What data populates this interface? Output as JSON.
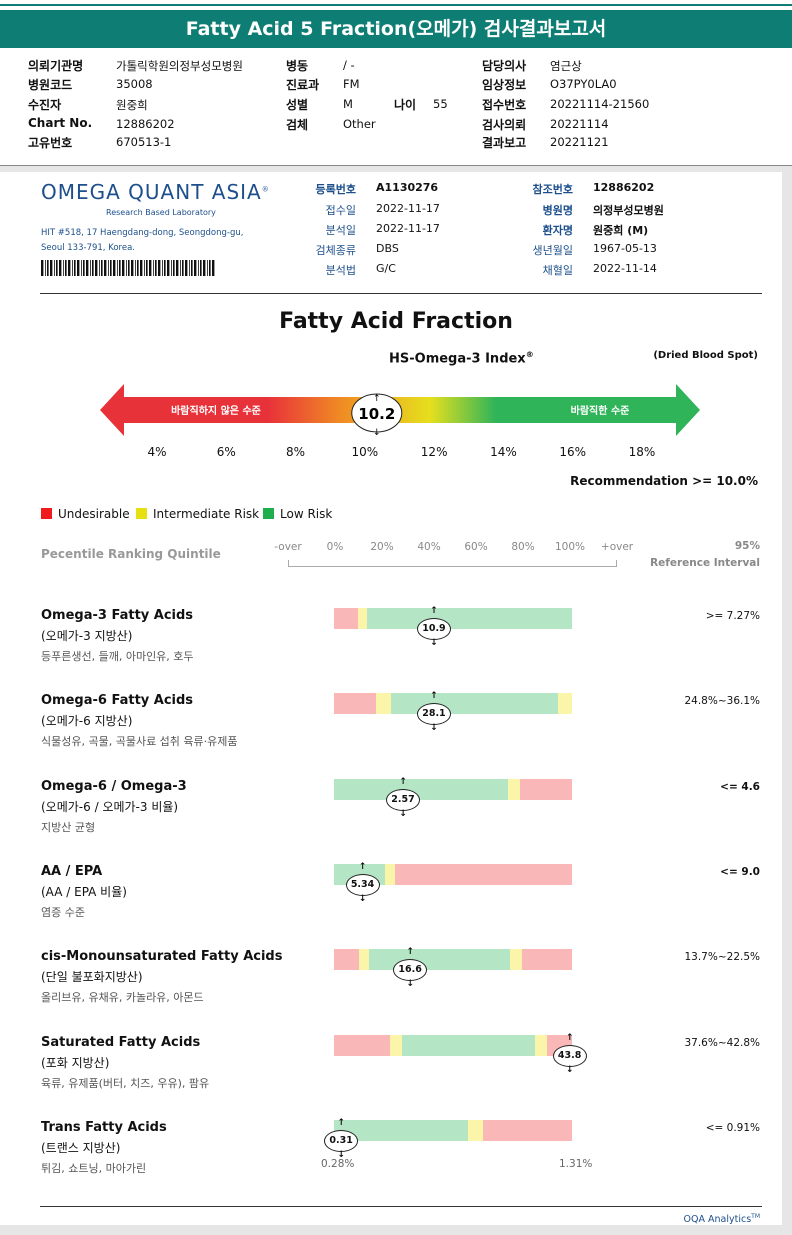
{
  "header": {
    "title": "Fatty Acid 5 Fraction(오메가) 검사결과보고서"
  },
  "info": {
    "col1": [
      {
        "label": "의뢰기관명",
        "value": "가톨릭학원의정부성모병원"
      },
      {
        "label": "병원코드",
        "value": "35008"
      },
      {
        "label": "수진자",
        "value": "원중희"
      },
      {
        "label": "Chart No.",
        "value": "12886202"
      },
      {
        "label": "고유번호",
        "value": "670513-1"
      }
    ],
    "col2": [
      {
        "label": "병동",
        "value": "/ -"
      },
      {
        "label": "진료과",
        "value": "FM"
      },
      {
        "label": "성별",
        "value": "M"
      },
      {
        "label": "검체",
        "value": "Other"
      }
    ],
    "age": {
      "label": "나이",
      "value": "55"
    },
    "col3": [
      {
        "label": "담당의사",
        "value": "염근상"
      },
      {
        "label": "임상정보",
        "value": "O37PY0LA0"
      },
      {
        "label": "접수번호",
        "value": "20221114-21560"
      },
      {
        "label": "검사의뢰",
        "value": "20221114"
      },
      {
        "label": "결과보고",
        "value": "20221121"
      }
    ]
  },
  "lab": {
    "name": "OMEGA QUANT ASIA",
    "trademark": "®",
    "sub": "Research Based Laboratory",
    "address_line1": "HIT #518, 17 Haengdang-dong, Seongdong-gu,",
    "address_line2": "Seoul 133-791, Korea."
  },
  "report_meta": {
    "left": [
      {
        "label": "등록번호",
        "value": "A1130276",
        "bold": true
      },
      {
        "label": "접수일",
        "value": "2022-11-17"
      },
      {
        "label": "분석일",
        "value": "2022-11-17"
      },
      {
        "label": "검체종류",
        "value": "DBS"
      },
      {
        "label": "분석법",
        "value": "G/C"
      }
    ],
    "right": [
      {
        "label": "참조번호",
        "value": "12886202",
        "bold": true
      },
      {
        "label": "병원명",
        "value": "의정부성모병원",
        "bold": true
      },
      {
        "label": "환자명",
        "value": "원중희 (M)",
        "bold": true
      },
      {
        "label": "생년월일",
        "value": "1967-05-13"
      },
      {
        "label": "채혈일",
        "value": "2022-11-14"
      }
    ]
  },
  "index_section": {
    "title": "Fatty Acid Fraction",
    "subtitle": "HS-Omega-3 Index",
    "subtitle_sup": "®",
    "sample_type": "(Dried Blood Spot)",
    "left_label": "바람직하지 않은 수준",
    "right_label": "바람직한 수준",
    "value": "10.2",
    "value_num": 10.2,
    "scale": [
      "4%",
      "6%",
      "8%",
      "10%",
      "12%",
      "14%",
      "16%",
      "18%"
    ],
    "scale_min": 4,
    "scale_max": 18,
    "recommendation": "Recommendation   >= 10.0%",
    "colors": {
      "red": "#e8323a",
      "orange": "#f08a24",
      "yellow": "#e6df1e",
      "green": "#2fb45a"
    }
  },
  "legend": [
    {
      "label": "Undesirable",
      "color": "#ee1c1c"
    },
    {
      "label": "Intermediate Risk",
      "color": "#e6e010"
    },
    {
      "label": "Low Risk",
      "color": "#1fae4c"
    }
  ],
  "percentile": {
    "title": "Pecentile Ranking Quintile",
    "ticks": [
      "-over",
      "0%",
      "20%",
      "40%",
      "60%",
      "80%",
      "100%",
      "+over"
    ],
    "ref_title_line1": "95%",
    "ref_title_line2": "Reference Interval"
  },
  "zone_colors": {
    "red": "#f9b7b7",
    "yellow": "#fbf5aa",
    "green": "#b4e6c6"
  },
  "rows": [
    {
      "title": "Omega-3 Fatty Acids",
      "sub": "(오메가-3 지방산)",
      "desc": "등푸른생선, 들깨, 아마인유, 호두",
      "ref": ">= 7.27%",
      "ref_bold": false,
      "value": "10.9",
      "marker_frac": 0.42,
      "zones": [
        [
          "red",
          0,
          0.1
        ],
        [
          "yellow",
          0.1,
          0.14
        ],
        [
          "green",
          0.14,
          1.0
        ]
      ]
    },
    {
      "title": "Omega-6 Fatty Acids",
      "sub": "(오메가-6 지방산)",
      "desc": "식물성유, 곡물, 곡물사료 섭취 육류·유제품",
      "ref": "24.8%~36.1%",
      "ref_bold": false,
      "value": "28.1",
      "marker_frac": 0.42,
      "zones": [
        [
          "red",
          0,
          0.175
        ],
        [
          "yellow",
          0.175,
          0.24
        ],
        [
          "green",
          0.24,
          0.94
        ],
        [
          "yellow",
          0.94,
          1.0
        ]
      ]
    },
    {
      "title": "Omega-6 / Omega-3",
      "sub": "(오메가-6 / 오메가-3 비율)",
      "desc": "지방산 균형",
      "ref": "<= 4.6",
      "ref_bold": true,
      "value": "2.57",
      "marker_frac": 0.29,
      "zones": [
        [
          "green",
          0,
          0.73
        ],
        [
          "yellow",
          0.73,
          0.78
        ],
        [
          "red",
          0.78,
          1.0
        ]
      ]
    },
    {
      "title": "AA / EPA",
      "sub": "(AA / EPA 비율)",
      "desc": "염증 수준",
      "ref": "<= 9.0",
      "ref_bold": true,
      "value": "5.34",
      "marker_frac": 0.12,
      "zones": [
        [
          "green",
          0,
          0.215
        ],
        [
          "yellow",
          0.215,
          0.255
        ],
        [
          "red",
          0.255,
          1.0
        ]
      ]
    },
    {
      "title": "cis-Monounsaturated Fatty Acids",
      "sub": "(단일 불포화지방산)",
      "desc": "올리브유, 유채유, 카놀라유, 아몬드",
      "ref": "13.7%~22.5%",
      "ref_bold": false,
      "value": "16.6",
      "marker_frac": 0.32,
      "zones": [
        [
          "red",
          0,
          0.105
        ],
        [
          "yellow",
          0.105,
          0.145
        ],
        [
          "green",
          0.145,
          0.74
        ],
        [
          "yellow",
          0.74,
          0.79
        ],
        [
          "red",
          0.79,
          1.0
        ]
      ]
    },
    {
      "title": "Saturated Fatty Acids",
      "sub": "(포화 지방산)",
      "desc": "육류, 유제품(버터, 치즈, 우유), 팜유",
      "ref": "37.6%~42.8%",
      "ref_bold": false,
      "value": "43.8",
      "marker_frac": 0.99,
      "zones": [
        [
          "red",
          0,
          0.235
        ],
        [
          "yellow",
          0.235,
          0.285
        ],
        [
          "green",
          0.285,
          0.845
        ],
        [
          "yellow",
          0.845,
          0.895
        ],
        [
          "red",
          0.895,
          1.0
        ]
      ]
    },
    {
      "title": "Trans Fatty Acids",
      "sub": "(트랜스 지방산)",
      "desc": "튀김, 쇼트닝, 마아가린",
      "ref": "<= 0.91%",
      "ref_bold": false,
      "value": "0.31",
      "marker_frac": 0.03,
      "zones": [
        [
          "green",
          0,
          0.565
        ],
        [
          "yellow",
          0.565,
          0.625
        ],
        [
          "red",
          0.625,
          1.0
        ]
      ]
    }
  ],
  "trans_range": {
    "min": "0.28%",
    "max": "1.31%"
  },
  "footer": {
    "text": "OQA Analytics",
    "sup": "TM"
  }
}
